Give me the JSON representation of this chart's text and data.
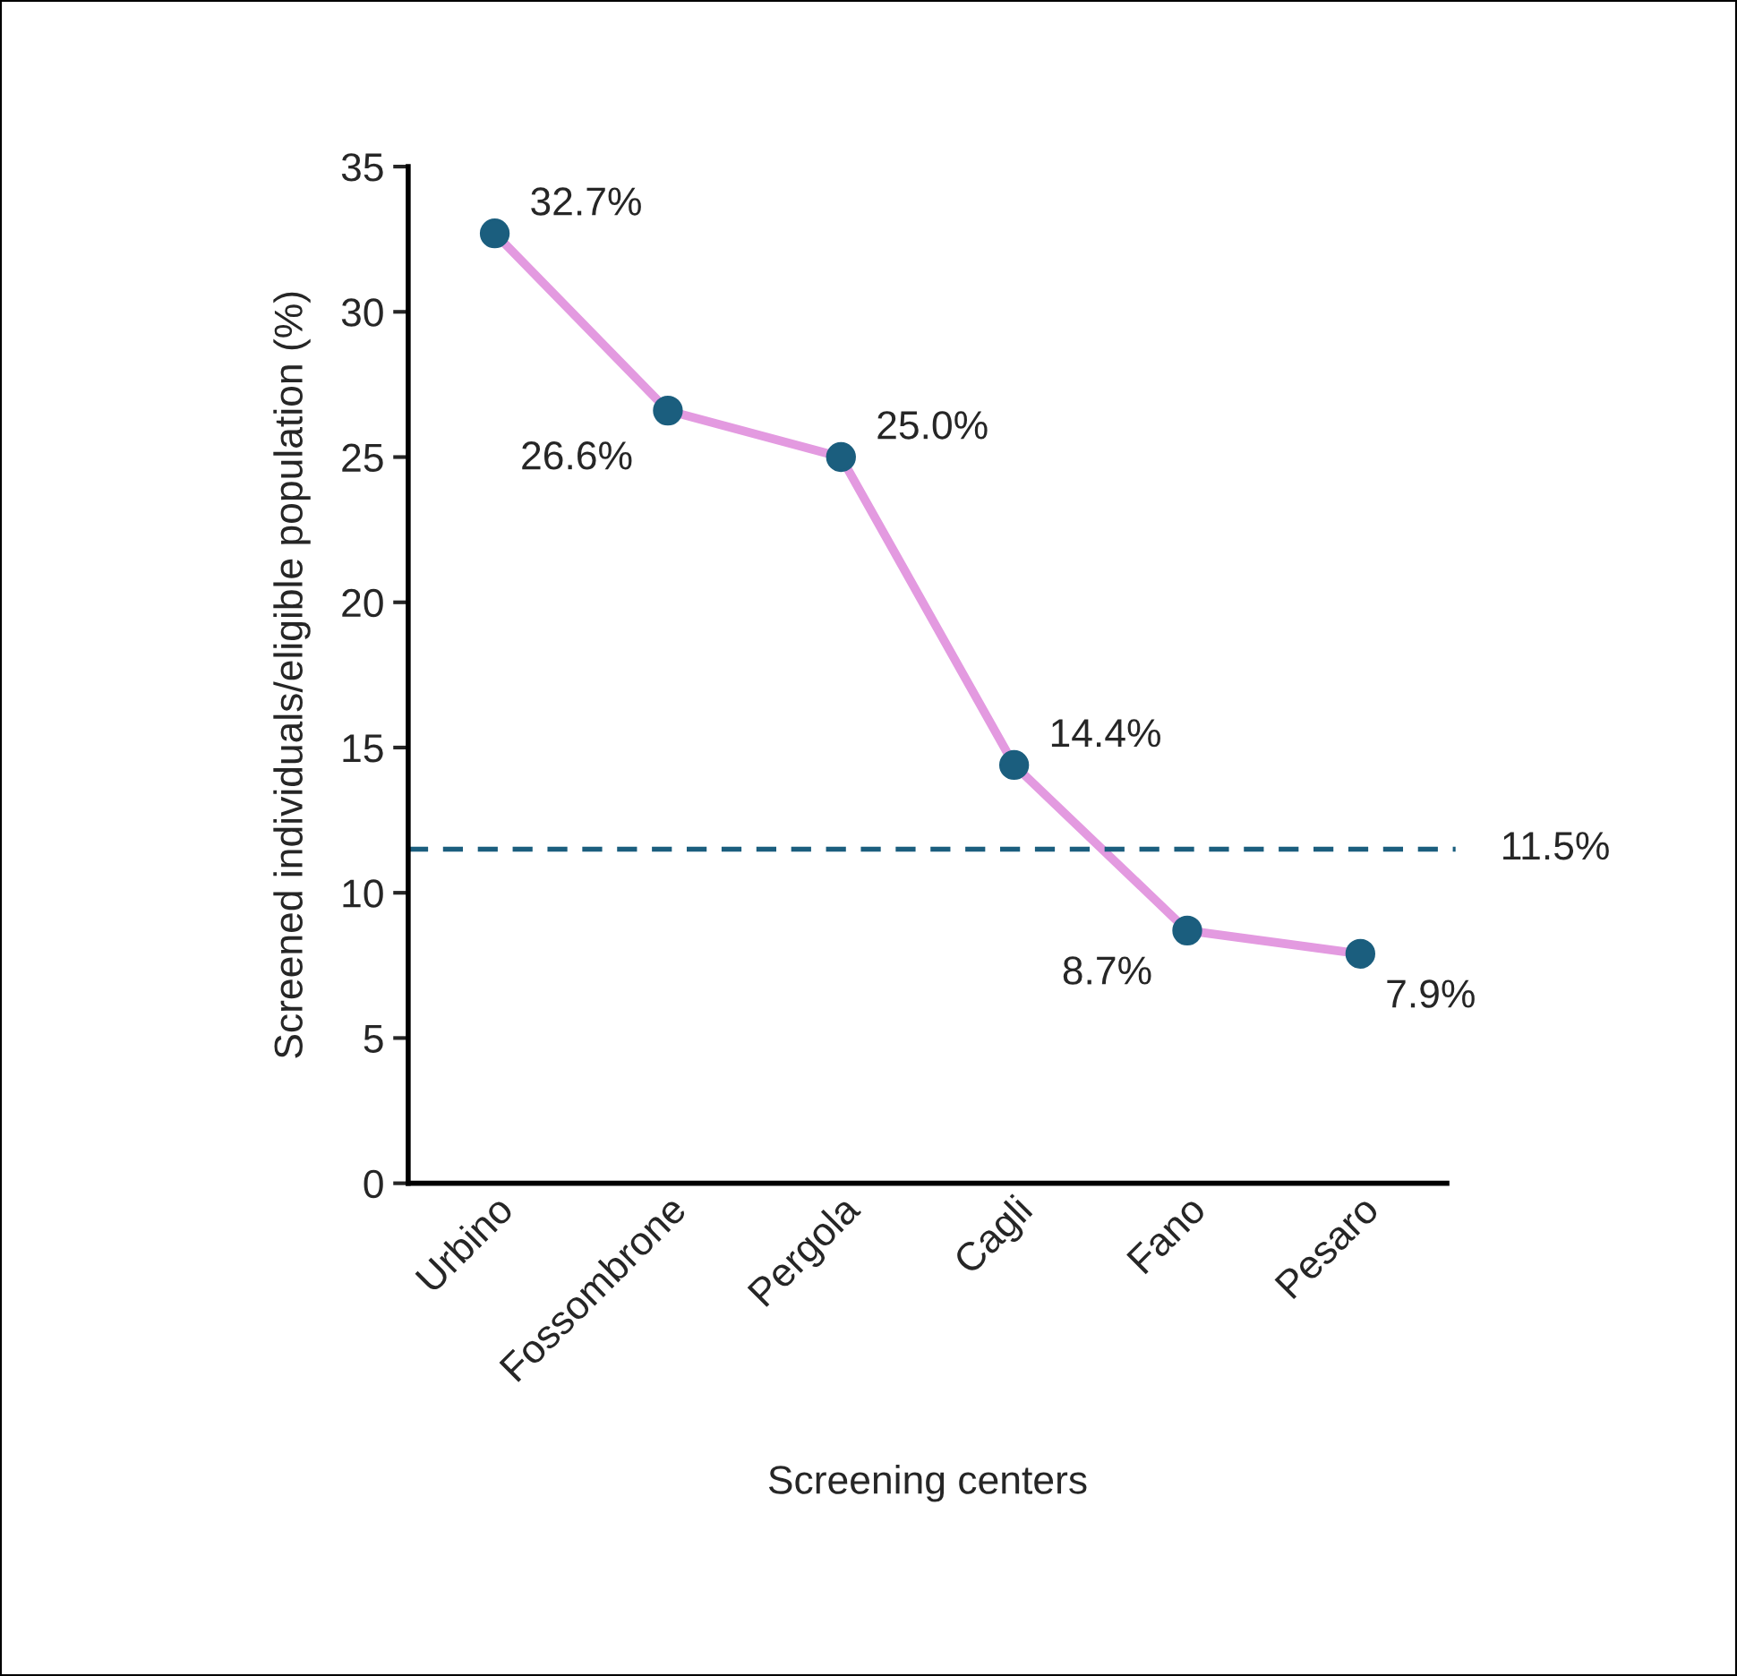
{
  "chart_data": {
    "type": "line",
    "xlabel": "Screening centers",
    "ylabel": "Screened individuals/eligible population (%)",
    "categories": [
      "Urbino",
      "Fossombrone",
      "Pergola",
      "Cagli",
      "Fano",
      "Pesaro"
    ],
    "series": [
      {
        "color": "#e39ae0",
        "colors": [
          "#1b5e7e",
          "#1b5e7e",
          "#1b5e7e",
          "#1b5e7e",
          "#1b5e7e",
          "#1b5e7e"
        ],
        "values": [
          32.7,
          26.6,
          25.0,
          14.4,
          8.7,
          7.9
        ],
        "value_labels": [
          "32.7%",
          "26.6%",
          "25.0%",
          "14.4%",
          "8.7%",
          "7.9%"
        ]
      }
    ],
    "marker": "circle",
    "ylim": [
      0,
      35
    ],
    "yticks": [
      0,
      5,
      10,
      15,
      20,
      25,
      30,
      35
    ],
    "grid": false,
    "legend": false,
    "ref_lines": [
      {
        "axis": "y",
        "value": 11.5,
        "label": "11.5%",
        "color": "#1b5e7e",
        "line_style": "dashed"
      }
    ]
  }
}
